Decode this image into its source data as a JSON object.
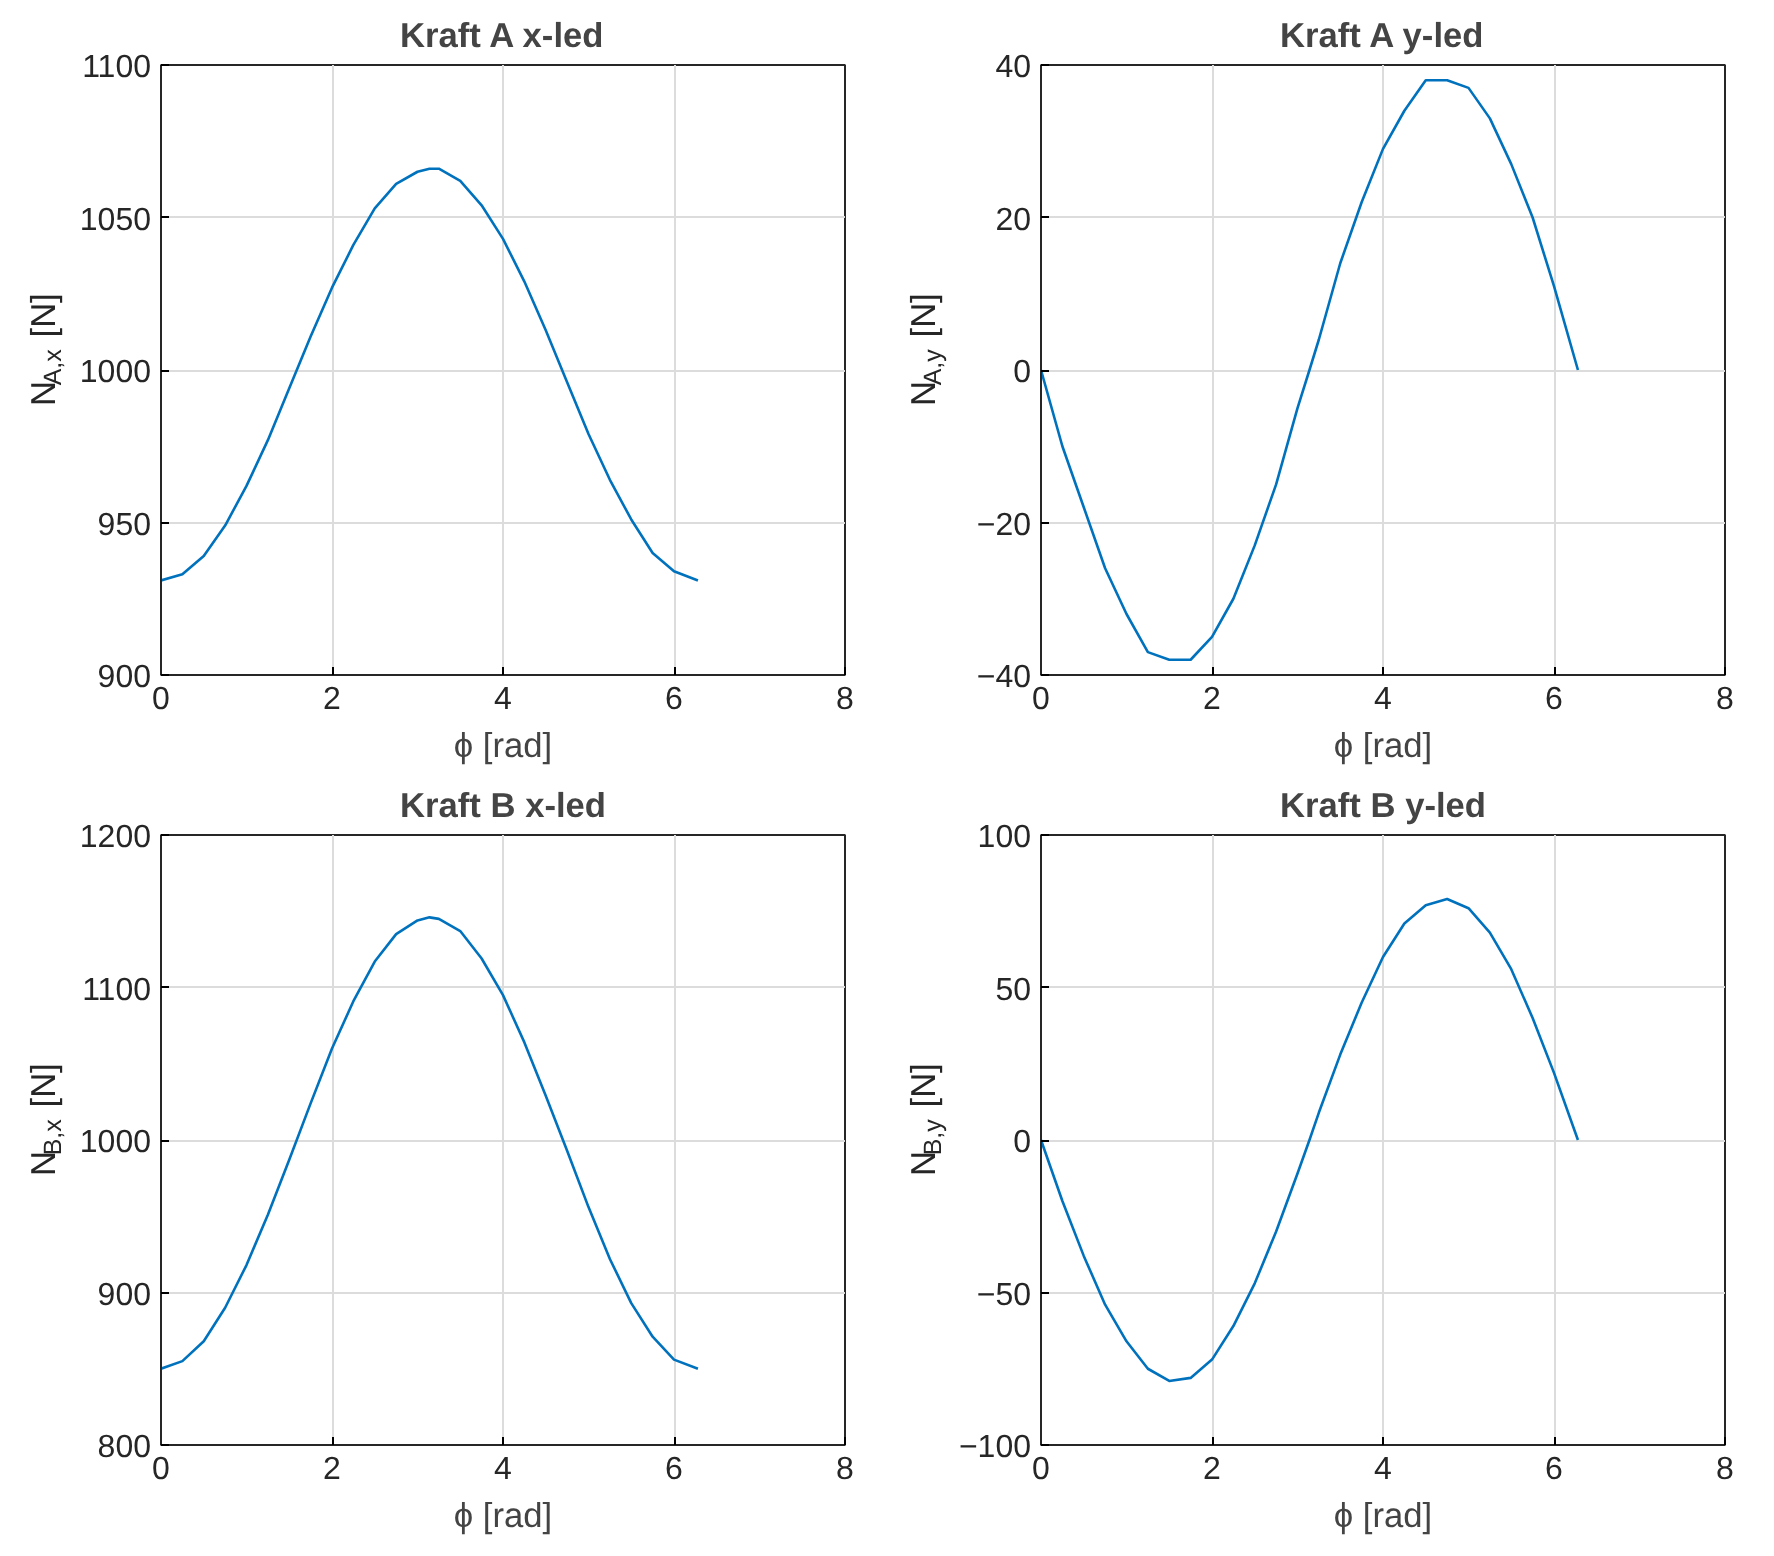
{
  "chart_data": [
    {
      "type": "line",
      "title": "Kraft A x-led",
      "xlabel": "ϕ [rad]",
      "ylabel": "N$_{A,x}$ [N]",
      "xlim": [
        0,
        8
      ],
      "xticks": [
        0,
        2,
        4,
        6,
        8
      ],
      "ylim": [
        900,
        1100
      ],
      "yticks": [
        900,
        950,
        1000,
        1050,
        1100
      ],
      "grid": true,
      "series": [
        {
          "color": "#0072bd",
          "x": [
            0,
            0.25,
            0.5,
            0.75,
            1,
            1.25,
            1.5,
            1.75,
            2,
            2.25,
            2.5,
            2.75,
            3,
            3.14,
            3.25,
            3.5,
            3.75,
            4,
            4.25,
            4.5,
            4.75,
            5,
            5.25,
            5.5,
            5.75,
            6,
            6.28
          ],
          "values": [
            931,
            933,
            939,
            949,
            962,
            977,
            994,
            1011,
            1027,
            1041,
            1053,
            1061,
            1065,
            1066,
            1066,
            1062,
            1054,
            1043,
            1029,
            1013,
            996,
            979,
            964,
            951,
            940,
            934,
            931
          ]
        }
      ]
    },
    {
      "type": "line",
      "title": "Kraft A y-led",
      "xlabel": "ϕ [rad]",
      "ylabel": "N$_{A,y}$ [N]",
      "xlim": [
        0,
        8
      ],
      "xticks": [
        0,
        2,
        4,
        6,
        8
      ],
      "ylim": [
        -40,
        40
      ],
      "yticks": [
        -40,
        -20,
        0,
        20,
        40
      ],
      "grid": true,
      "series": [
        {
          "color": "#0072bd",
          "x": [
            0,
            0.25,
            0.5,
            0.75,
            1,
            1.25,
            1.5,
            1.75,
            2,
            2.25,
            2.5,
            2.75,
            3,
            3.14,
            3.25,
            3.5,
            3.75,
            4,
            4.25,
            4.5,
            4.75,
            5,
            5.25,
            5.5,
            5.75,
            6,
            6.28
          ],
          "values": [
            0,
            -10,
            -18,
            -26,
            -32,
            -37,
            -38,
            -38,
            -35,
            -30,
            -23,
            -15,
            -5,
            0,
            4,
            14,
            22,
            29,
            34,
            38,
            38,
            37,
            33,
            27,
            20,
            11,
            0
          ]
        }
      ]
    },
    {
      "type": "line",
      "title": "Kraft B x-led",
      "xlabel": "ϕ [rad]",
      "ylabel": "N$_{B,x}$ [N]",
      "xlim": [
        0,
        8
      ],
      "xticks": [
        0,
        2,
        4,
        6,
        8
      ],
      "ylim": [
        800,
        1200
      ],
      "yticks": [
        800,
        900,
        1000,
        1100,
        1200
      ],
      "grid": true,
      "series": [
        {
          "color": "#0072bd",
          "x": [
            0,
            0.25,
            0.5,
            0.75,
            1,
            1.25,
            1.5,
            1.75,
            2,
            2.25,
            2.5,
            2.75,
            3,
            3.14,
            3.25,
            3.5,
            3.75,
            4,
            4.25,
            4.5,
            4.75,
            5,
            5.25,
            5.5,
            5.75,
            6,
            6.28
          ],
          "values": [
            850,
            855,
            868,
            890,
            918,
            951,
            987,
            1024,
            1060,
            1091,
            1117,
            1135,
            1144,
            1146,
            1145,
            1137,
            1119,
            1095,
            1064,
            1029,
            993,
            956,
            922,
            893,
            871,
            856,
            850
          ]
        }
      ]
    },
    {
      "type": "line",
      "title": "Kraft B y-led",
      "xlabel": "ϕ [rad]",
      "ylabel": "N$_{B,y}$ [N]",
      "xlim": [
        0,
        8
      ],
      "xticks": [
        0,
        2,
        4,
        6,
        8
      ],
      "ylim": [
        -100,
        100
      ],
      "yticks": [
        -100,
        -50,
        0,
        50,
        100
      ],
      "grid": true,
      "series": [
        {
          "color": "#0072bd",
          "x": [
            0,
            0.25,
            0.5,
            0.75,
            1,
            1.25,
            1.5,
            1.75,
            2,
            2.25,
            2.5,
            2.75,
            3,
            3.14,
            3.25,
            3.5,
            3.75,
            4,
            4.25,
            4.5,
            4.75,
            5,
            5.25,
            5.5,
            5.75,
            6,
            6.28
          ],
          "values": [
            0,
            -20,
            -38,
            -54,
            -66,
            -75,
            -79,
            -78,
            -72,
            -61,
            -47,
            -30,
            -11,
            0,
            9,
            28,
            45,
            60,
            71,
            77,
            79,
            76,
            68,
            56,
            40,
            22,
            0
          ]
        }
      ]
    }
  ]
}
